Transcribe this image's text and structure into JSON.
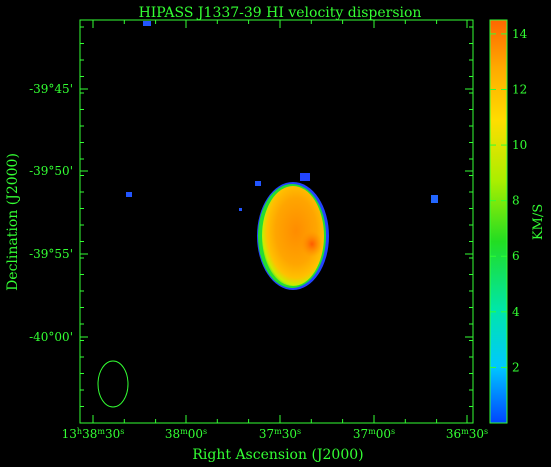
{
  "chart_data": {
    "type": "heatmap",
    "title": "HIPASS J1337-39   HI velocity dispersion",
    "xlabel": "Right Ascension (J2000)",
    "ylabel": "Declination (J2000)",
    "colorbar_label": "KM/S",
    "x_ticks": [
      {
        "label": "13h38m30s",
        "parts": [
          [
            "13",
            ""
          ],
          [
            "h",
            "sup"
          ],
          [
            "38",
            ""
          ],
          [
            "m",
            "sup"
          ],
          [
            "30",
            ""
          ],
          [
            "s",
            "sup"
          ]
        ]
      },
      {
        "label": "38m00s",
        "parts": [
          [
            "38",
            ""
          ],
          [
            "m",
            "sup"
          ],
          [
            "00",
            ""
          ],
          [
            "s",
            "sup"
          ]
        ]
      },
      {
        "label": "37m30s",
        "parts": [
          [
            "37",
            ""
          ],
          [
            "m",
            "sup"
          ],
          [
            "30",
            ""
          ],
          [
            "s",
            "sup"
          ]
        ]
      },
      {
        "label": "37m00s",
        "parts": [
          [
            "37",
            ""
          ],
          [
            "m",
            "sup"
          ],
          [
            "00",
            ""
          ],
          [
            "s",
            "sup"
          ]
        ]
      },
      {
        "label": "36m30s",
        "parts": [
          [
            "36",
            ""
          ],
          [
            "m",
            "sup"
          ],
          [
            "30",
            ""
          ],
          [
            "s",
            "sup"
          ]
        ]
      }
    ],
    "y_ticks": [
      "-39°45'",
      "-39°50'",
      "-39°55'",
      "-40°00'"
    ],
    "colorbar": {
      "min": 0,
      "max": 14.5,
      "ticks": [
        2,
        4,
        6,
        8,
        10,
        12,
        14
      ],
      "colormap": [
        "#0044ff",
        "#00c8ff",
        "#00e6aa",
        "#22dd22",
        "#aaee00",
        "#ffdd00",
        "#ffaa00",
        "#ff6600"
      ]
    },
    "blobs": [
      {
        "name": "galaxy",
        "ra_s": 37.5,
        "dec": -39.91,
        "value": 12.7
      },
      {
        "name": "galaxy-core",
        "ra_s": 37.25,
        "dec": -39.935,
        "value": 13.8
      }
    ],
    "noise_spots": [
      {
        "ra_s": 55.0,
        "dec": -39.71,
        "value": 1.5
      },
      {
        "ra_s": 45.5,
        "dec": -39.852,
        "value": 1.2
      },
      {
        "ra_s": 30.5,
        "dec": -39.85,
        "value": 1.0
      },
      {
        "ra_s": 2.0,
        "dec": -39.862,
        "value": 1.3
      }
    ],
    "beam": {
      "shape": "ellipse",
      "color": "#33ff33"
    },
    "colors": {
      "axis": "#33ff33",
      "background": "#000000",
      "title": "#33ff33"
    }
  }
}
